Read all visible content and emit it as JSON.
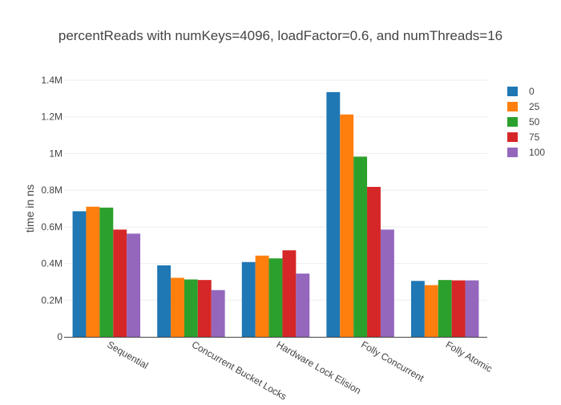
{
  "chart_data": {
    "type": "bar",
    "title": "percentReads with numKeys=4096, loadFactor=0.6, and numThreads=16",
    "xlabel": "",
    "ylabel": "time in ns",
    "ylim": [
      0,
      1400000
    ],
    "yticks": [
      {
        "value": 0,
        "label": "0"
      },
      {
        "value": 200000,
        "label": "0.2M"
      },
      {
        "value": 400000,
        "label": "0.4M"
      },
      {
        "value": 600000,
        "label": "0.6M"
      },
      {
        "value": 800000,
        "label": "0.8M"
      },
      {
        "value": 1000000,
        "label": "1M"
      },
      {
        "value": 1200000,
        "label": "1.2M"
      },
      {
        "value": 1400000,
        "label": "1.4M"
      }
    ],
    "categories": [
      "Sequential",
      "Concurrent Bucket Locks",
      "Hardware Lock Elision",
      "Folly Concurrent",
      "Folly Atomic"
    ],
    "series": [
      {
        "name": "0",
        "color": "#1f77b4",
        "values": [
          685000,
          390000,
          408000,
          1335000,
          305000
        ]
      },
      {
        "name": "25",
        "color": "#ff7f0e",
        "values": [
          710000,
          322000,
          443000,
          1213000,
          282000
        ]
      },
      {
        "name": "50",
        "color": "#2ca02c",
        "values": [
          705000,
          313000,
          428000,
          983000,
          310000
        ]
      },
      {
        "name": "75",
        "color": "#d62728",
        "values": [
          585000,
          310000,
          472000,
          818000,
          308000
        ]
      },
      {
        "name": "100",
        "color": "#9467bd",
        "values": [
          563000,
          255000,
          345000,
          585000,
          308000
        ]
      }
    ],
    "grid": true,
    "legend_position": "top-right"
  }
}
